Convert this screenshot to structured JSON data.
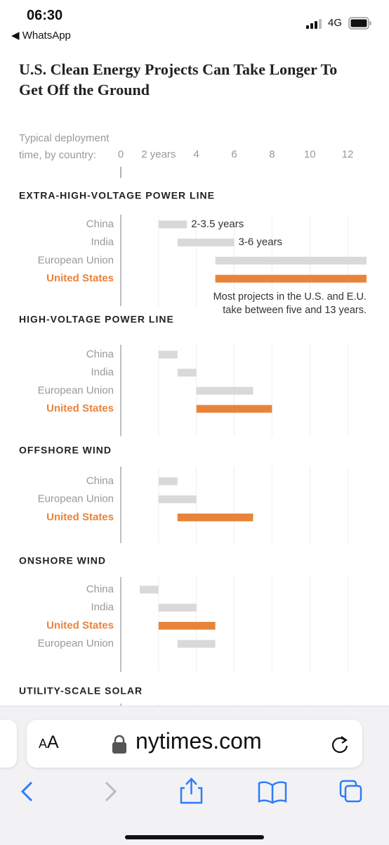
{
  "status_bar": {
    "time": "06:30",
    "back_app": "◀ WhatsApp",
    "network": "4G"
  },
  "chart_data": {
    "type": "range-bar",
    "title": "U.S. Clean Energy Projects Can Take Longer To Get Off the Ground",
    "axis_label": "Typical deployment time, by country:",
    "xlim": [
      0,
      13
    ],
    "xticks": [
      0,
      {
        "value": 2,
        "label": "2 years"
      },
      4,
      6,
      8,
      10,
      12
    ],
    "grid": true,
    "panels": [
      {
        "title": "EXTRA-HIGH-VOLTAGE POWER LINE",
        "categories": [
          "China",
          "India",
          "European Union",
          "United States"
        ],
        "start": [
          2,
          3,
          5,
          5
        ],
        "end": [
          3.5,
          6,
          13,
          13
        ],
        "colors": [
          "#d9d9d9",
          "#d9d9d9",
          "#d9d9d9",
          "#e8833a"
        ],
        "row_labels": [
          "2-3.5 years",
          "3-6 years",
          null,
          null
        ],
        "note": "Most projects in the U.S. and E.U. take between five and 13 years."
      },
      {
        "title": "HIGH-VOLTAGE POWER LINE",
        "categories": [
          "China",
          "India",
          "European Union",
          "United States"
        ],
        "start": [
          2,
          3,
          4,
          4
        ],
        "end": [
          3,
          4,
          7,
          8
        ],
        "colors": [
          "#d9d9d9",
          "#d9d9d9",
          "#d9d9d9",
          "#e8833a"
        ]
      },
      {
        "title": "OFFSHORE WIND",
        "categories": [
          "China",
          "European Union",
          "United States"
        ],
        "start": [
          2,
          2,
          3
        ],
        "end": [
          3,
          4,
          7
        ],
        "colors": [
          "#d9d9d9",
          "#d9d9d9",
          "#e8833a"
        ]
      },
      {
        "title": "ONSHORE WIND",
        "categories": [
          "China",
          "India",
          "United States",
          "European Union"
        ],
        "start": [
          1,
          2,
          2,
          3
        ],
        "end": [
          2,
          4,
          5,
          5
        ],
        "colors": [
          "#d9d9d9",
          "#d9d9d9",
          "#e8833a",
          "#d9d9d9"
        ]
      },
      {
        "title": "UTILITY-SCALE SOLAR",
        "categories": [],
        "start": [],
        "end": [],
        "colors": []
      }
    ]
  },
  "browser": {
    "text_size_button": "AA",
    "url": "nytimes.com"
  }
}
